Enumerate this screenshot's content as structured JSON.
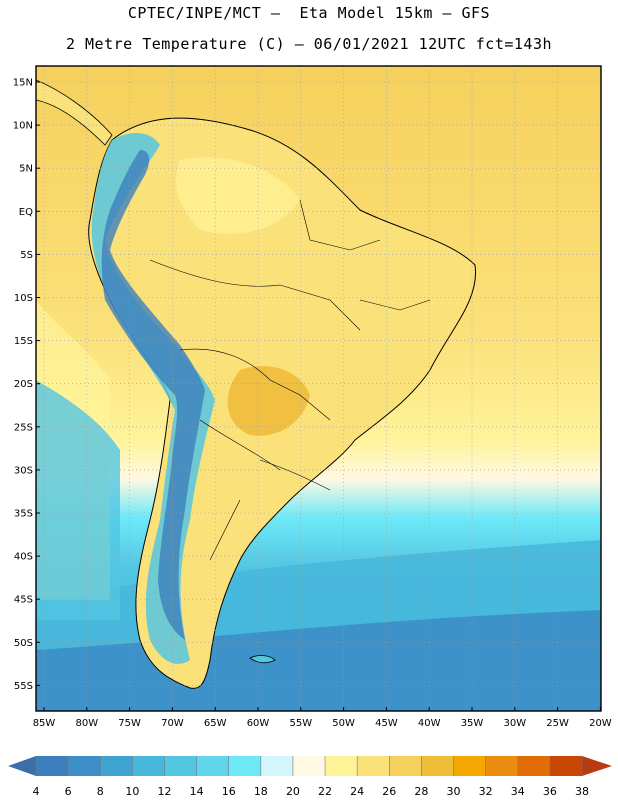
{
  "header": {
    "line1": "CPTEC/INPE/MCT –  Eta Model 15km – GFS",
    "line2": "2 Metre Temperature (C) – 06/01/2021 12UTC fct=143h"
  },
  "axes": {
    "lat_labels": [
      "15N",
      "10N",
      "5N",
      "EQ",
      "5S",
      "10S",
      "15S",
      "20S",
      "25S",
      "30S",
      "35S",
      "40S",
      "45S",
      "50S",
      "55S"
    ],
    "lon_labels": [
      "85W",
      "80W",
      "75W",
      "70W",
      "65W",
      "60W",
      "55W",
      "50W",
      "45W",
      "40W",
      "35W",
      "30W",
      "25W",
      "20W"
    ]
  },
  "colorbar": {
    "labels": [
      "4",
      "6",
      "8",
      "10",
      "12",
      "14",
      "16",
      "18",
      "20",
      "22",
      "24",
      "26",
      "28",
      "30",
      "32",
      "34",
      "36",
      "38"
    ],
    "colors": [
      "#3d7fbd",
      "#3c8ec8",
      "#3fa3d2",
      "#47b8dc",
      "#53c6e2",
      "#5fd6ec",
      "#6ee9f8",
      "#d2f6fb",
      "#fff8e2",
      "#fff39a",
      "#fbe17a",
      "#f6d05c",
      "#efbd3a",
      "#f4a700",
      "#ec8d12",
      "#e26d07",
      "#c94604"
    ],
    "left_arrow_color": "#3a6fa8",
    "right_arrow_color": "#b83a10"
  }
}
